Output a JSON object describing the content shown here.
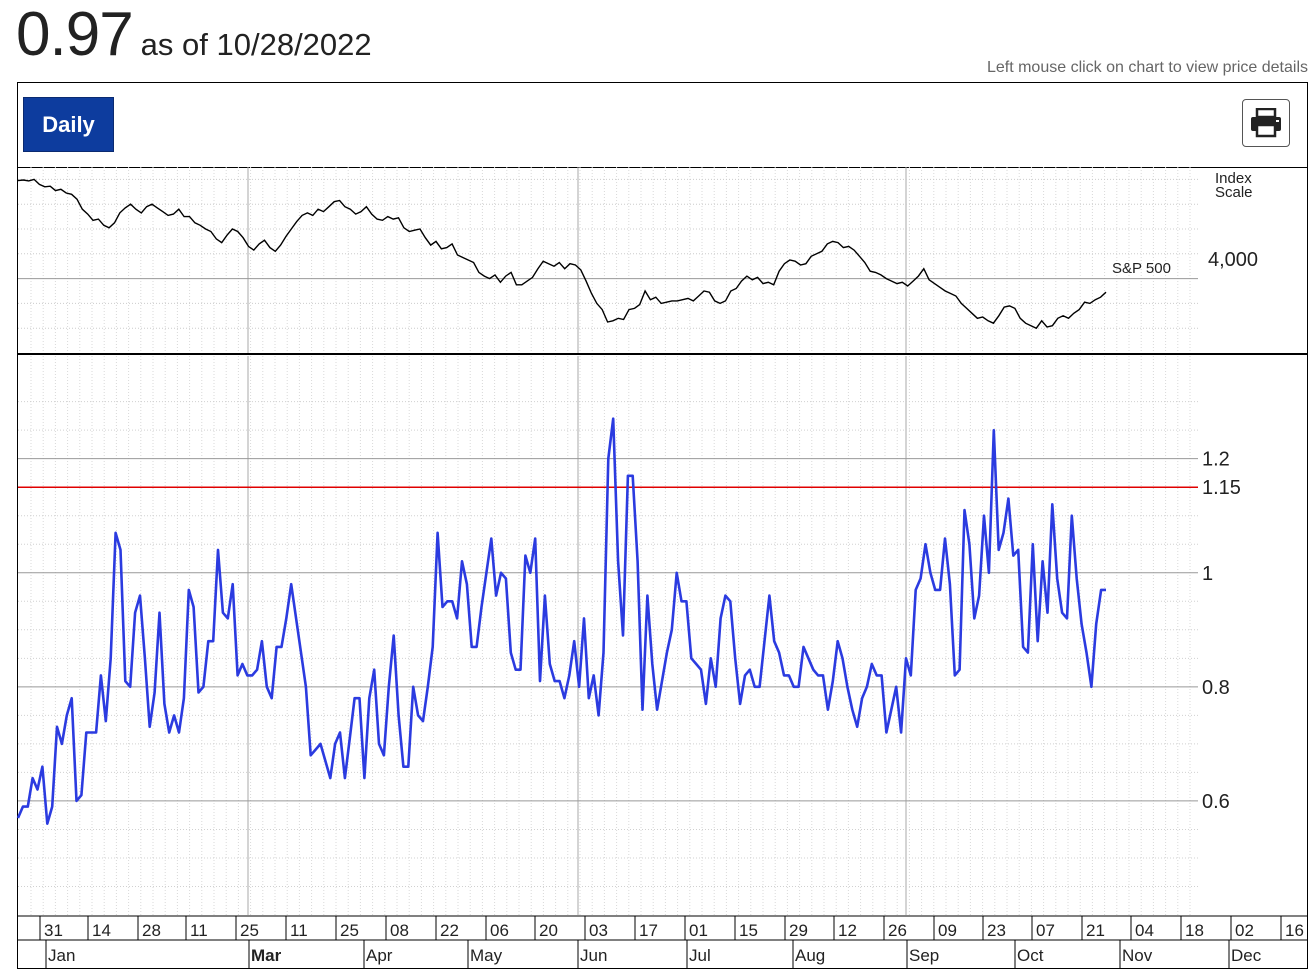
{
  "header": {
    "value": "0.97",
    "as_of": "as of 10/28/2022",
    "hint": "Left mouse click on chart to view price details"
  },
  "toolbar": {
    "period_label": "Daily",
    "print_icon": "printer-icon"
  },
  "colors": {
    "main_series": "#2b3be0",
    "threshold": "#e00000",
    "sp500": "#000000",
    "button": "#0d3c9e"
  },
  "chart_data": [
    {
      "type": "line",
      "title": "",
      "scale_label": [
        "Index",
        "Scale"
      ],
      "series": [
        {
          "name": "S&P 500",
          "values": [
            4790,
            4795,
            4788,
            4800,
            4760,
            4740,
            4745,
            4710,
            4720,
            4690,
            4680,
            4640,
            4560,
            4520,
            4470,
            4480,
            4430,
            4410,
            4450,
            4530,
            4570,
            4600,
            4560,
            4530,
            4580,
            4600,
            4570,
            4540,
            4510,
            4520,
            4560,
            4500,
            4500,
            4450,
            4430,
            4400,
            4380,
            4320,
            4290,
            4350,
            4400,
            4380,
            4330,
            4260,
            4230,
            4280,
            4310,
            4250,
            4220,
            4270,
            4340,
            4400,
            4460,
            4510,
            4530,
            4510,
            4560,
            4540,
            4580,
            4620,
            4630,
            4580,
            4560,
            4520,
            4540,
            4580,
            4520,
            4480,
            4470,
            4500,
            4480,
            4490,
            4410,
            4380,
            4390,
            4400,
            4330,
            4270,
            4300,
            4240,
            4250,
            4280,
            4190,
            4170,
            4150,
            4130,
            4050,
            4020,
            4000,
            4030,
            3970,
            4020,
            4050,
            3950,
            3950,
            3980,
            4010,
            4080,
            4140,
            4120,
            4100,
            4130,
            4080,
            4120,
            4110,
            4070,
            3980,
            3880,
            3800,
            3750,
            3650,
            3660,
            3680,
            3670,
            3750,
            3760,
            3790,
            3900,
            3830,
            3850,
            3800,
            3810,
            3820,
            3820,
            3830,
            3840,
            3820,
            3860,
            3900,
            3890,
            3820,
            3800,
            3820,
            3900,
            3920,
            3980,
            4020,
            3990,
            4010,
            3960,
            3970,
            3950,
            4060,
            4120,
            4150,
            4140,
            4110,
            4120,
            4180,
            4200,
            4220,
            4280,
            4300,
            4290,
            4250,
            4260,
            4230,
            4180,
            4130,
            4060,
            4050,
            4030,
            4000,
            3980,
            3960,
            3970,
            3940,
            3980,
            4020,
            4080,
            3990,
            3960,
            3930,
            3900,
            3880,
            3860,
            3800,
            3760,
            3720,
            3680,
            3690,
            3660,
            3640,
            3700,
            3770,
            3780,
            3760,
            3680,
            3640,
            3620,
            3600,
            3660,
            3610,
            3620,
            3680,
            3700,
            3680,
            3720,
            3750,
            3810,
            3800,
            3830,
            3850,
            3890
          ],
          "start": "12/31/2021",
          "end": "10/28/2022",
          "end_label": "S&P 500"
        }
      ],
      "y_ticks": [
        "4,000"
      ],
      "ylim": [
        3400,
        4900
      ]
    },
    {
      "type": "line",
      "title": "",
      "series": [
        {
          "name": "",
          "values": [
            0.57,
            0.59,
            0.59,
            0.64,
            0.62,
            0.66,
            0.56,
            0.59,
            0.73,
            0.7,
            0.75,
            0.78,
            0.6,
            0.61,
            0.72,
            0.72,
            0.72,
            0.82,
            0.74,
            0.85,
            1.07,
            1.04,
            0.81,
            0.8,
            0.93,
            0.96,
            0.85,
            0.73,
            0.79,
            0.93,
            0.77,
            0.72,
            0.75,
            0.72,
            0.78,
            0.97,
            0.94,
            0.79,
            0.8,
            0.88,
            0.88,
            1.04,
            0.93,
            0.92,
            0.98,
            0.82,
            0.84,
            0.82,
            0.82,
            0.83,
            0.88,
            0.8,
            0.78,
            0.87,
            0.87,
            0.92,
            0.98,
            0.92,
            0.86,
            0.8,
            0.68,
            0.69,
            0.7,
            0.67,
            0.64,
            0.7,
            0.72,
            0.64,
            0.71,
            0.78,
            0.78,
            0.64,
            0.78,
            0.83,
            0.7,
            0.68,
            0.8,
            0.89,
            0.75,
            0.66,
            0.66,
            0.8,
            0.75,
            0.74,
            0.8,
            0.87,
            1.07,
            0.94,
            0.95,
            0.95,
            0.92,
            1.02,
            0.98,
            0.87,
            0.87,
            0.94,
            1.0,
            1.06,
            0.96,
            1.0,
            0.99,
            0.86,
            0.83,
            0.83,
            1.03,
            1.0,
            1.06,
            0.81,
            0.96,
            0.84,
            0.81,
            0.81,
            0.78,
            0.82,
            0.88,
            0.8,
            0.92,
            0.78,
            0.82,
            0.75,
            0.86,
            1.2,
            1.27,
            1.02,
            0.89,
            1.17,
            1.17,
            1.02,
            0.76,
            0.96,
            0.84,
            0.76,
            0.81,
            0.86,
            0.9,
            1.0,
            0.95,
            0.95,
            0.85,
            0.84,
            0.83,
            0.77,
            0.85,
            0.8,
            0.92,
            0.96,
            0.95,
            0.85,
            0.77,
            0.82,
            0.83,
            0.8,
            0.8,
            0.88,
            0.96,
            0.88,
            0.86,
            0.82,
            0.82,
            0.8,
            0.8,
            0.87,
            0.85,
            0.83,
            0.82,
            0.82,
            0.76,
            0.81,
            0.88,
            0.85,
            0.8,
            0.76,
            0.73,
            0.78,
            0.8,
            0.84,
            0.82,
            0.82,
            0.72,
            0.76,
            0.8,
            0.72,
            0.85,
            0.82,
            0.97,
            0.99,
            1.05,
            1.0,
            0.97,
            0.97,
            1.06,
            0.98,
            0.82,
            0.83,
            1.11,
            1.05,
            0.92,
            0.96,
            1.1,
            1.0,
            1.25,
            1.04,
            1.07,
            1.13,
            1.03,
            1.04,
            0.87,
            0.86,
            1.05,
            0.88,
            1.02,
            0.93,
            1.12,
            0.99,
            0.93,
            0.92,
            1.1,
            0.99,
            0.91,
            0.86,
            0.8,
            0.91,
            0.97,
            0.97
          ],
          "start": "12/31/2021",
          "end": "10/28/2022"
        }
      ],
      "threshold": 1.15,
      "y_ticks": [
        "1.2",
        "1.15",
        "1",
        "0.8",
        "0.6"
      ],
      "ylim": [
        0.4,
        1.38
      ]
    }
  ],
  "x_axis": {
    "day_labels": [
      "31",
      "14",
      "28",
      "11",
      "25",
      "11",
      "25",
      "08",
      "22",
      "06",
      "20",
      "03",
      "17",
      "01",
      "15",
      "29",
      "12",
      "26",
      "09",
      "23",
      "07",
      "21",
      "04",
      "18",
      "02",
      "16"
    ],
    "month_labels": [
      "Jan",
      "Mar",
      "Apr",
      "May",
      "Jun",
      "Jul",
      "Aug",
      "Sep",
      "Oct",
      "Nov",
      "Dec"
    ],
    "bold_months": [
      "Mar"
    ]
  }
}
